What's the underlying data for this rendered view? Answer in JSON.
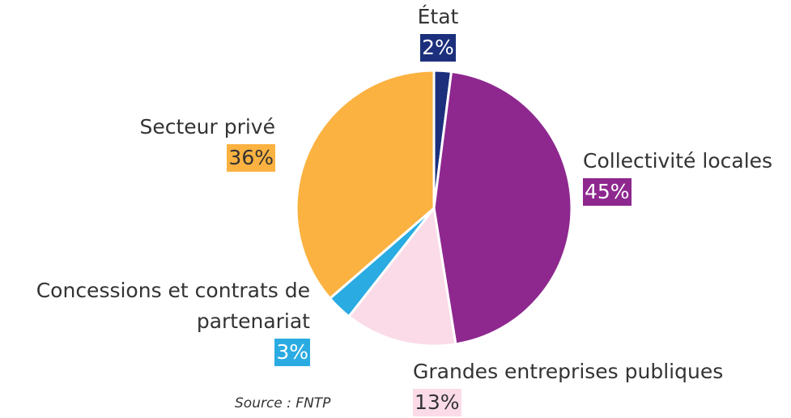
{
  "chart_data": {
    "type": "pie",
    "categories": [
      "État",
      "Collectivité locales",
      "Grandes entreprises publiques",
      "Concessions et contrats de partenariat",
      "Secteur privé"
    ],
    "values": [
      2,
      45,
      13,
      3,
      36
    ],
    "value_labels": [
      "2%",
      "45%",
      "13%",
      "3%",
      "36%"
    ],
    "colors": [
      "#1b2f7c",
      "#8e288f",
      "#fbdbe8",
      "#2aabe2",
      "#fbb241"
    ],
    "source": "Source : FNTP"
  }
}
